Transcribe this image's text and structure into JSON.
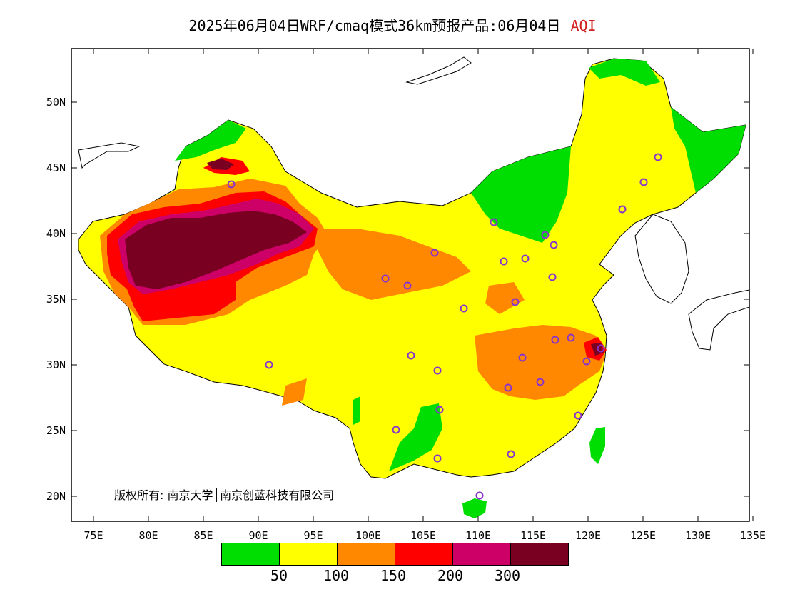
{
  "title": {
    "text": "2025年06月04日WRF/cmaq模式36km预报产品:06月04日",
    "variable": "AQI",
    "variable_color": "#d02020"
  },
  "copyright": "版权所有: 南京大学│南京创蓝科技有限公司",
  "axes": {
    "x_ticks": [
      "75E",
      "80E",
      "85E",
      "90E",
      "95E",
      "100E",
      "105E",
      "110E",
      "115E",
      "120E",
      "125E",
      "130E",
      "135E"
    ],
    "y_ticks": [
      "50N",
      "45N",
      "40N",
      "35N",
      "30N",
      "25N",
      "20N"
    ]
  },
  "legend": {
    "colors": [
      "#00dd00",
      "#ffff00",
      "#ff8800",
      "#ff0000",
      "#cc0066",
      "#7a0022"
    ],
    "thresholds": [
      "50",
      "100",
      "150",
      "200",
      "300"
    ]
  },
  "map_colors": {
    "good": "#00dd00",
    "moderate": "#ffff00",
    "sensitive": "#ff8800",
    "unhealthy": "#ff0000",
    "very_unhealthy": "#cc0066",
    "hazardous": "#7a0022",
    "station_marker": "#8833cc"
  }
}
